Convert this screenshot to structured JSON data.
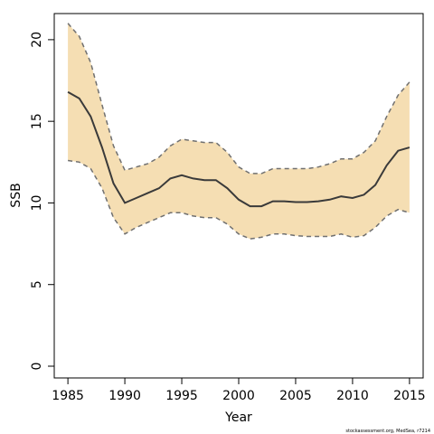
{
  "chart_data": {
    "type": "line",
    "x": [
      1985,
      1986,
      1987,
      1988,
      1989,
      1990,
      1991,
      1992,
      1993,
      1994,
      1995,
      1996,
      1997,
      1998,
      1999,
      2000,
      2001,
      2002,
      2003,
      2004,
      2005,
      2006,
      2007,
      2008,
      2009,
      2010,
      2011,
      2012,
      2013,
      2014,
      2015
    ],
    "series": [
      {
        "color": "#3a3a3a",
        "values": [
          16.8,
          16.4,
          15.3,
          13.4,
          11.2,
          10.0,
          10.3,
          10.6,
          10.9,
          11.5,
          11.7,
          11.5,
          11.4,
          11.4,
          10.9,
          10.2,
          9.8,
          9.8,
          10.1,
          10.1,
          10.05,
          10.05,
          10.1,
          10.2,
          10.4,
          10.3,
          10.5,
          11.1,
          12.3,
          13.2,
          13.4
        ]
      }
    ],
    "band": {
      "color": "#f5deb3",
      "line_color": "#707070",
      "upper": [
        21.0,
        20.2,
        18.6,
        16.0,
        13.5,
        12.0,
        12.2,
        12.4,
        12.8,
        13.5,
        13.9,
        13.8,
        13.7,
        13.7,
        13.1,
        12.2,
        11.8,
        11.8,
        12.1,
        12.1,
        12.1,
        12.1,
        12.2,
        12.4,
        12.7,
        12.7,
        13.1,
        13.8,
        15.3,
        16.6,
        17.4
      ],
      "lower": [
        12.6,
        12.5,
        12.1,
        10.9,
        9.1,
        8.1,
        8.5,
        8.8,
        9.1,
        9.4,
        9.4,
        9.2,
        9.1,
        9.1,
        8.7,
        8.1,
        7.8,
        7.9,
        8.1,
        8.1,
        8.0,
        7.95,
        7.95,
        7.95,
        8.1,
        7.9,
        8.0,
        8.5,
        9.2,
        9.6,
        9.4
      ]
    },
    "x_label": "Year",
    "y_label": "SSB",
    "xlim": [
      1983.8,
      2016.2
    ],
    "xticks": [
      1985,
      1990,
      1995,
      2000,
      2005,
      2010,
      2015
    ],
    "ylim": [
      -0.72,
      21.6
    ],
    "yticks": [
      0,
      5,
      10,
      15,
      20
    ],
    "footnote": "stockassessment.org, MedSea, r7214"
  }
}
